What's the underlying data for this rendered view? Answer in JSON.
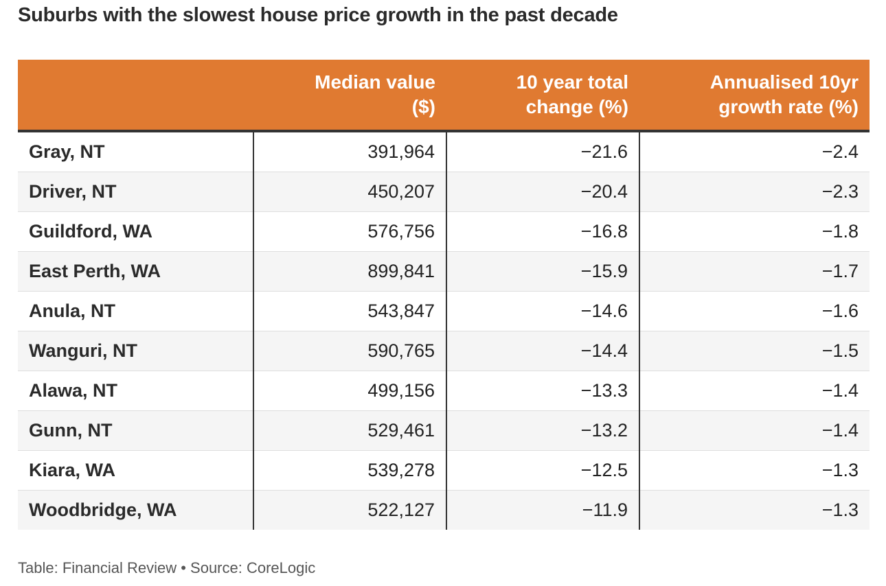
{
  "title": "Suburbs with the slowest house price growth in the past decade",
  "footer": "Table: Financial Review • Source: CoreLogic",
  "colors": {
    "header_background": "#e07a31",
    "header_text": "#ffffff",
    "stripe_background": "#f5f5f5"
  },
  "chart_data": {
    "type": "table",
    "title": "Suburbs with the slowest house price growth in the past decade",
    "columns": [
      "",
      "Median value ($)",
      "10 year total change (%)",
      "Annualised 10yr growth rate (%)"
    ],
    "rows": [
      [
        "Gray, NT",
        "391,964",
        "−21.6",
        "−2.4"
      ],
      [
        "Driver, NT",
        "450,207",
        "−20.4",
        "−2.3"
      ],
      [
        "Guildford, WA",
        "576,756",
        "−16.8",
        "−1.8"
      ],
      [
        "East Perth, WA",
        "899,841",
        "−15.9",
        "−1.7"
      ],
      [
        "Anula, NT",
        "543,847",
        "−14.6",
        "−1.6"
      ],
      [
        "Wanguri, NT",
        "590,765",
        "−14.4",
        "−1.5"
      ],
      [
        "Alawa, NT",
        "499,156",
        "−13.3",
        "−1.4"
      ],
      [
        "Gunn, NT",
        "529,461",
        "−13.2",
        "−1.4"
      ],
      [
        "Kiara, WA",
        "539,278",
        "−12.5",
        "−1.3"
      ],
      [
        "Woodbridge, WA",
        "522,127",
        "−11.9",
        "−1.3"
      ]
    ]
  }
}
